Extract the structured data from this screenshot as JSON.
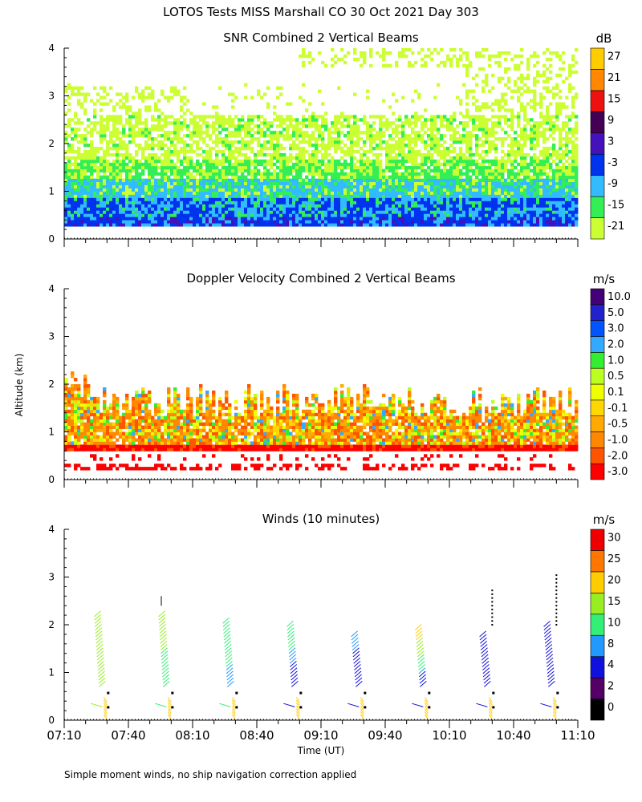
{
  "figure": {
    "title": "LOTOS Tests MISS Marshall CO  30 Oct 2021 Day 303",
    "ylabel": "Altitude (km)",
    "xlabel": "Time (UT)",
    "footnote": "Simple moment winds, no ship navigation correction applied",
    "x_ticks": [
      "07:10",
      "07:40",
      "08:10",
      "08:40",
      "09:10",
      "09:40",
      "10:10",
      "10:40",
      "11:10"
    ]
  },
  "chart_data": [
    {
      "type": "heatmap",
      "title": "SNR Combined 2 Vertical Beams",
      "xlabel": "Time (UT)",
      "ylabel": "Altitude (km)",
      "xlim": [
        "07:10",
        "11:10"
      ],
      "ylim": [
        0,
        4
      ],
      "y_ticks": [
        "0",
        "1",
        "2",
        "3",
        "4"
      ],
      "colorbar": {
        "unit": "dB",
        "levels": [
          "-21",
          "-15",
          "-9",
          "-3",
          "3",
          "9",
          "15",
          "21",
          "27"
        ],
        "colors": [
          "#ccff33",
          "#33ee55",
          "#33bbff",
          "#0033ee",
          "#4411bb",
          "#440055",
          "#ee1111",
          "#ff8800",
          "#ffcc00"
        ]
      },
      "layers": [
        {
          "level": "-21",
          "alt_range_km": [
            0.3,
            2.6
          ]
        },
        {
          "level": "-15",
          "alt_range_km": [
            0.3,
            1.7
          ]
        },
        {
          "level": "-9",
          "alt_range_km": [
            0.3,
            1.2
          ]
        },
        {
          "level": "-3",
          "alt_range_km": [
            0.3,
            0.9
          ]
        }
      ]
    },
    {
      "type": "heatmap",
      "title": "Doppler Velocity Combined 2 Vertical Beams",
      "xlabel": "Time (UT)",
      "ylabel": "Altitude (km)",
      "xlim": [
        "07:10",
        "11:10"
      ],
      "ylim": [
        0,
        4
      ],
      "y_ticks": [
        "0",
        "1",
        "2",
        "3",
        "4"
      ],
      "colorbar": {
        "unit": "m/s",
        "levels": [
          "-3.0",
          "-2.0",
          "-1.0",
          "-0.5",
          "-0.1",
          "0.1",
          "0.5",
          "1.0",
          "2.0",
          "3.0",
          "5.0",
          "10.0"
        ],
        "colors": [
          "#ff0000",
          "#ff5500",
          "#ff8800",
          "#ffaa00",
          "#ffd700",
          "#eeff00",
          "#bbff22",
          "#33ee33",
          "#33aaff",
          "#0055ff",
          "#2222cc",
          "#440077"
        ]
      },
      "layers": [
        {
          "level": "-1.0",
          "alt_range_km": [
            0.6,
            2.0
          ]
        },
        {
          "level": "0.1",
          "alt_range_km": [
            0.7,
            2.3
          ]
        },
        {
          "level": "-3.0",
          "alt_range_km": [
            0.2,
            0.6
          ]
        }
      ]
    },
    {
      "type": "barbs",
      "title": "Winds (10 minutes)",
      "xlabel": "Time (UT)",
      "ylabel": "Altitude (km)",
      "xlim": [
        "07:10",
        "11:10"
      ],
      "ylim": [
        0,
        4
      ],
      "y_ticks": [
        "0",
        "1",
        "2",
        "3",
        "4"
      ],
      "colorbar": {
        "unit": "m/s",
        "levels": [
          "0",
          "2",
          "4",
          "8",
          "10",
          "15",
          "20",
          "25",
          "30"
        ],
        "colors": [
          "#000000",
          "#550066",
          "#1111dd",
          "#2299ff",
          "#33ee77",
          "#99ee22",
          "#ffcc00",
          "#ff7700",
          "#ee0000"
        ]
      },
      "profiles": [
        {
          "time": "07:30",
          "top_km": 2.2,
          "speed_lower": 15,
          "speed_upper": 20
        },
        {
          "time": "08:00",
          "top_km": 2.2,
          "speed_lower": 10,
          "speed_upper": 20
        },
        {
          "time": "08:30",
          "top_km": 2.1,
          "speed_lower": 8,
          "speed_upper": 15
        },
        {
          "time": "09:00",
          "top_km": 2.0,
          "speed_lower": 4,
          "speed_upper": 15
        },
        {
          "time": "09:30",
          "top_km": 1.8,
          "speed_lower": 4,
          "speed_upper": 10
        },
        {
          "time": "10:00",
          "top_km": 1.9,
          "speed_lower": 4,
          "speed_upper": 25
        },
        {
          "time": "10:30",
          "top_km": 1.8,
          "speed_lower": 4,
          "speed_upper": 4
        },
        {
          "time": "11:00",
          "top_km": 2.0,
          "speed_lower": 4,
          "speed_upper": 8
        }
      ]
    }
  ]
}
